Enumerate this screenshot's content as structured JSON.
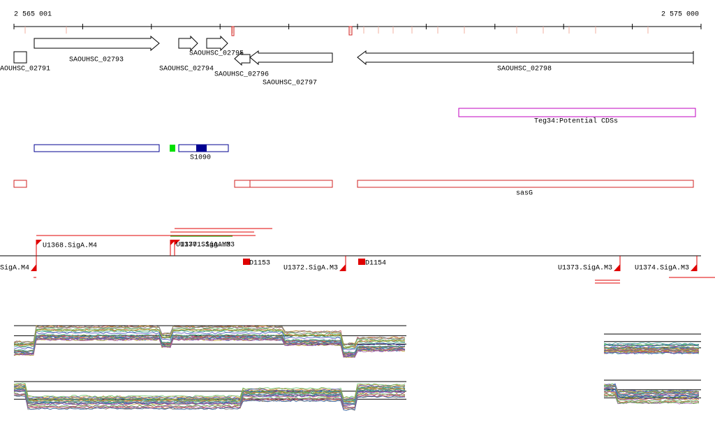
{
  "ruler": {
    "start": "2 565 001",
    "end": "2 575 000"
  },
  "genes": [
    {
      "label": "AOUHSC_02791"
    },
    {
      "label": "SAOUHSC_02793"
    },
    {
      "label": "SAOUHSC_02794"
    },
    {
      "label": "SAOUHSC_02795"
    },
    {
      "label": "SAOUHSC_02796"
    },
    {
      "label": "SAOUHSC_02797"
    },
    {
      "label": "SAOUHSC_02798"
    }
  ],
  "tracks": {
    "potential_cds": "Teg34:Potential CDSs",
    "srna": "S1090",
    "operon": "sasG"
  },
  "promoters": [
    {
      "label": "SigA.M4"
    },
    {
      "label": "U1368.SigA.M4"
    },
    {
      "label": "U1370.SigA.M3"
    },
    {
      "label": "U1371.SigA.M3"
    },
    {
      "label": "D1153"
    },
    {
      "label": "U1372.SigA.M3"
    },
    {
      "label": "D1154"
    },
    {
      "label": "U1373.SigA.M3"
    },
    {
      "label": "U1374.SigA.M3"
    }
  ]
}
